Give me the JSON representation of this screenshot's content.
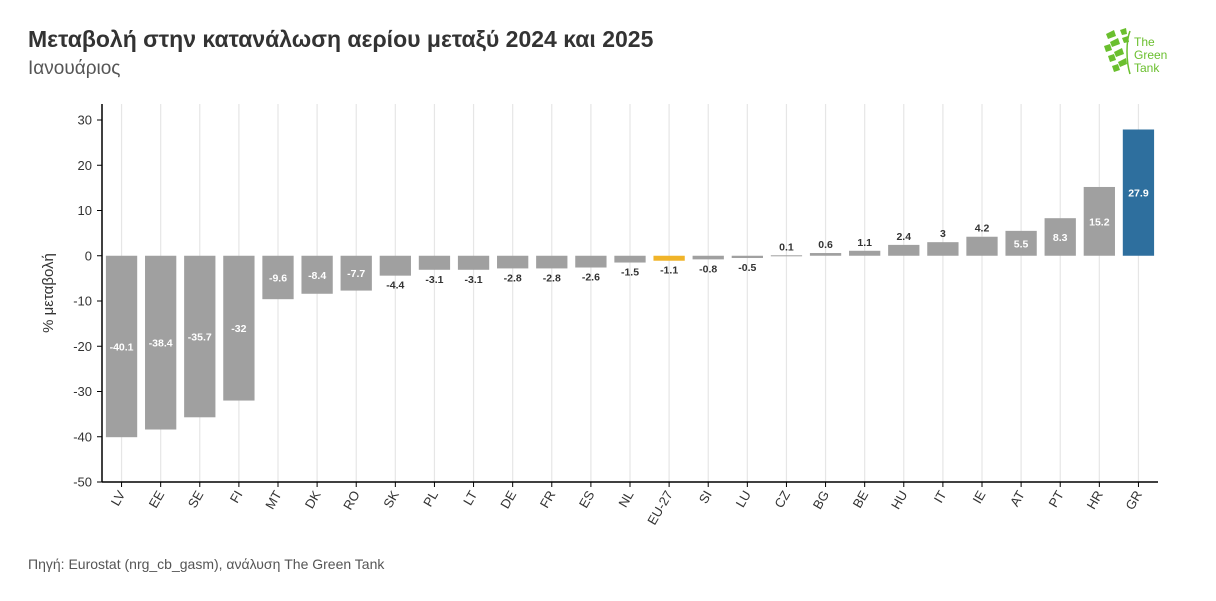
{
  "header": {
    "title": "Μεταβολή στην κατανάλωση αερίου μεταξύ 2024 και 2025",
    "subtitle": "Ιανουάριος"
  },
  "footer": {
    "source": "Πηγή: Eurostat (nrg_cb_gasm), ανάλυση The Green Tank"
  },
  "logo": {
    "line1": "The",
    "line2": "Green",
    "line3": "Tank",
    "color": "#6abf2e"
  },
  "colors": {
    "default_bar": "#a0a0a0",
    "highlight_eu": "#f0b429",
    "highlight_gr": "#2e6f9e",
    "gridline": "#e6e6e6",
    "axis": "#000000"
  },
  "chart_data": {
    "type": "bar",
    "title": "Μεταβολή στην κατανάλωση αερίου μεταξύ 2024 και 2025",
    "subtitle": "Ιανουάριος",
    "xlabel": "",
    "ylabel": "% μεταβολή",
    "ylim": [
      -50,
      30
    ],
    "yticks": [
      30,
      20,
      10,
      0,
      -10,
      -20,
      -30,
      -40,
      -50
    ],
    "grid": "vertical",
    "categories": [
      "LV",
      "EE",
      "SE",
      "FI",
      "MT",
      "DK",
      "RO",
      "SK",
      "PL",
      "LT",
      "DE",
      "FR",
      "ES",
      "NL",
      "EU-27",
      "SI",
      "LU",
      "CZ",
      "BG",
      "BE",
      "HU",
      "IT",
      "IE",
      "AT",
      "PT",
      "HR",
      "GR"
    ],
    "values": [
      -40.1,
      -38.4,
      -35.7,
      -32,
      -9.6,
      -8.4,
      -7.7,
      -4.4,
      -3.1,
      -3.1,
      -2.8,
      -2.8,
      -2.6,
      -1.5,
      -1.1,
      -0.8,
      -0.5,
      0.1,
      0.6,
      1.1,
      2.4,
      3,
      4.2,
      5.5,
      8.3,
      15.2,
      27.9
    ],
    "labels": [
      "-40.1",
      "-38.4",
      "-35.7",
      "-32",
      "-9.6",
      "-8.4",
      "-7.7",
      "-4.4",
      "-3.1",
      "-3.1",
      "-2.8",
      "-2.8",
      "-2.6",
      "-1.5",
      "-1.1",
      "-0.8",
      "-0.5",
      "0.1",
      "0.6",
      "1.1",
      "2.4",
      "3",
      "4.2",
      "5.5",
      "8.3",
      "15.2",
      "27.9"
    ],
    "highlight": {
      "EU-27": "#f0b429",
      "GR": "#2e6f9e"
    }
  }
}
